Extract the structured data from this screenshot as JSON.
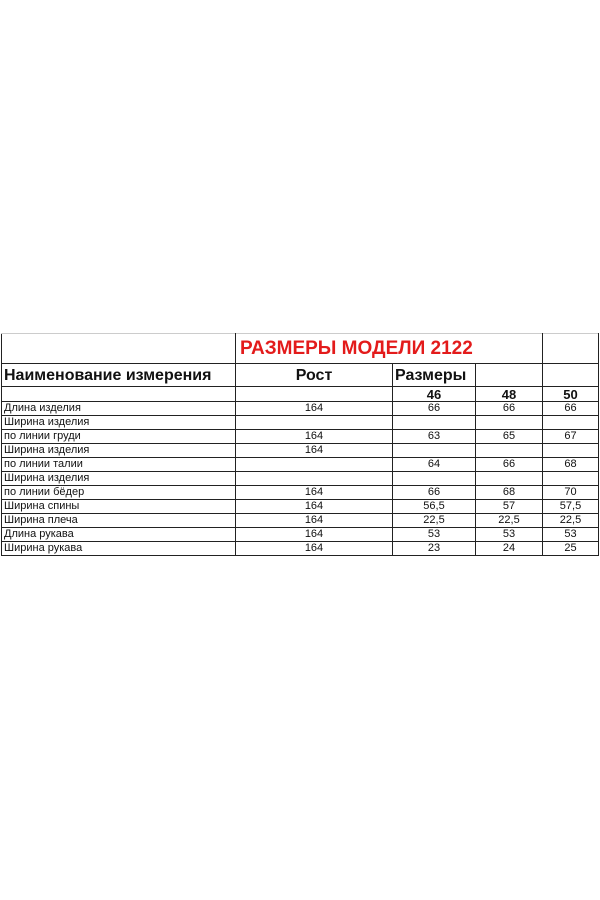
{
  "title": "РАЗМЕРЫ МОДЕЛИ 2122",
  "title_color": "#e31b1b",
  "headers": {
    "name": "Наименование измерения",
    "height": "Рост",
    "sizes": "Размеры"
  },
  "sizes": [
    "46",
    "48",
    "50"
  ],
  "rows": [
    {
      "name": "Длина изделия",
      "height": "164",
      "v": [
        "66",
        "66",
        "66"
      ]
    },
    {
      "name": "Ширина изделия",
      "height": "",
      "v": [
        "",
        "",
        ""
      ]
    },
    {
      "name": "по линии груди",
      "height": "164",
      "v": [
        "63",
        "65",
        "67"
      ]
    },
    {
      "name": "Ширина изделия",
      "height": "164",
      "v": [
        "",
        "",
        ""
      ]
    },
    {
      "name": "по линии талии",
      "height": "",
      "v": [
        "64",
        "66",
        "68"
      ]
    },
    {
      "name": "Ширина изделия",
      "height": "",
      "v": [
        "",
        "",
        ""
      ]
    },
    {
      "name": "по линии бёдер",
      "height": "164",
      "v": [
        "66",
        "68",
        "70"
      ]
    },
    {
      "name": "Ширина спины",
      "height": "164",
      "v": [
        "56,5",
        "57",
        "57,5"
      ]
    },
    {
      "name": "Ширина плеча",
      "height": "164",
      "v": [
        "22,5",
        "22,5",
        "22,5"
      ]
    },
    {
      "name": "Длина рукава",
      "height": "164",
      "v": [
        "53",
        "53",
        "53"
      ]
    },
    {
      "name": "Ширина рукава",
      "height": "164",
      "v": [
        "23",
        "24",
        "25"
      ]
    }
  ]
}
